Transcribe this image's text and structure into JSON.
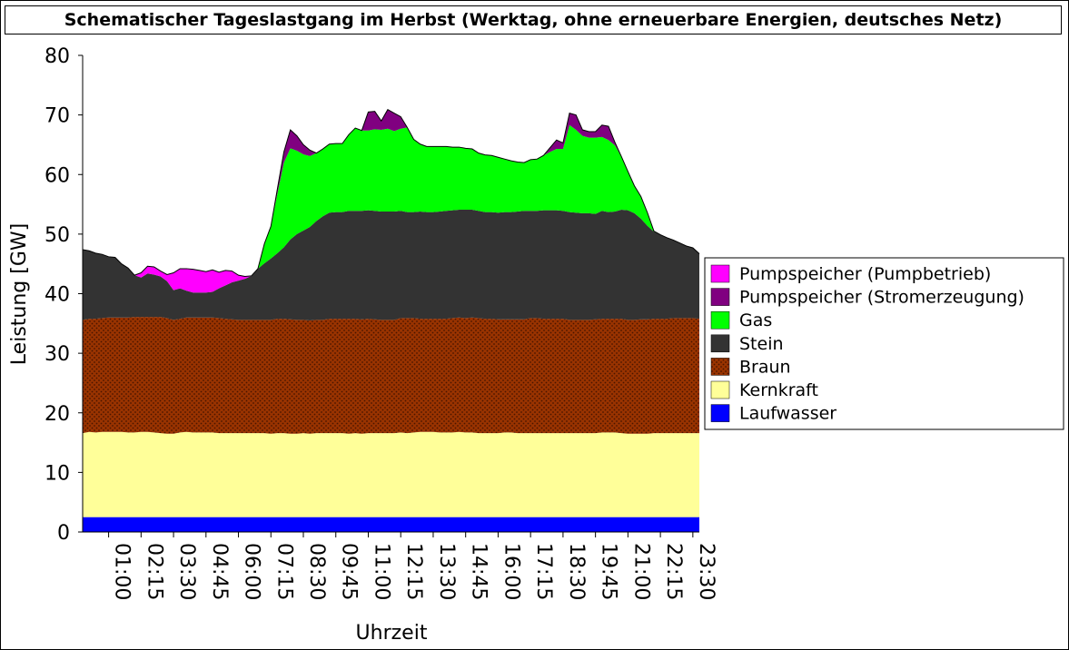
{
  "chart_data": {
    "type": "area",
    "stacked": true,
    "title": "Schematischer Tageslastgang im Herbst (Werktag, ohne erneuerbare Energien, deutsches Netz)",
    "xlabel": "Uhrzeit",
    "ylabel": "Leistung [GW]",
    "ylim": [
      0,
      80
    ],
    "yticks": [
      0,
      10,
      20,
      30,
      40,
      50,
      60,
      70,
      80
    ],
    "x_hours": [
      0,
      0.25,
      0.5,
      0.75,
      1,
      1.25,
      1.5,
      1.75,
      2,
      2.25,
      2.5,
      2.75,
      3,
      3.25,
      3.5,
      3.75,
      4,
      4.25,
      4.5,
      4.75,
      5,
      5.25,
      5.5,
      5.75,
      6,
      6.25,
      6.5,
      6.75,
      7,
      7.25,
      7.5,
      7.75,
      8,
      8.25,
      8.5,
      8.75,
      9,
      9.25,
      9.5,
      9.75,
      10,
      10.25,
      10.5,
      10.75,
      11,
      11.25,
      11.5,
      11.75,
      12,
      12.25,
      12.5,
      12.75,
      13,
      13.25,
      13.5,
      13.75,
      14,
      14.25,
      14.5,
      14.75,
      15,
      15.25,
      15.5,
      15.75,
      16,
      16.25,
      16.5,
      16.75,
      17,
      17.25,
      17.5,
      17.75,
      18,
      18.25,
      18.5,
      18.75,
      19,
      19.25,
      19.5,
      19.75,
      20,
      20.25,
      20.5,
      20.75,
      21,
      21.25,
      21.5,
      21.75,
      22,
      22.25,
      22.5,
      22.75,
      23,
      23.25,
      23.5,
      23.75
    ],
    "xtick_labels": [
      "01:00",
      "02:15",
      "03:30",
      "04:45",
      "06:00",
      "07:15",
      "08:30",
      "09:45",
      "11:00",
      "12:15",
      "13:30",
      "14:45",
      "16:00",
      "17:15",
      "18:30",
      "19:45",
      "21:00",
      "22:15",
      "23:30"
    ],
    "xtick_hours": [
      1,
      2.25,
      3.5,
      4.75,
      6,
      7.25,
      8.5,
      9.75,
      11,
      12.25,
      13.5,
      14.75,
      16,
      17.25,
      18.5,
      19.75,
      21,
      22.25,
      23.5
    ],
    "legend_position": "right",
    "series": [
      {
        "name": "Laufwasser",
        "color": "#0000ff",
        "values": [
          2.5,
          2.5,
          2.5,
          2.5,
          2.5,
          2.5,
          2.5,
          2.5,
          2.5,
          2.5,
          2.5,
          2.5,
          2.5,
          2.5,
          2.5,
          2.5,
          2.5,
          2.5,
          2.5,
          2.5,
          2.5,
          2.5,
          2.5,
          2.5,
          2.5,
          2.5,
          2.5,
          2.5,
          2.5,
          2.5,
          2.5,
          2.5,
          2.5,
          2.5,
          2.5,
          2.5,
          2.5,
          2.5,
          2.5,
          2.5,
          2.5,
          2.5,
          2.5,
          2.5,
          2.5,
          2.5,
          2.5,
          2.5,
          2.5,
          2.5,
          2.5,
          2.5,
          2.5,
          2.5,
          2.5,
          2.5,
          2.5,
          2.5,
          2.5,
          2.5,
          2.5,
          2.5,
          2.5,
          2.5,
          2.5,
          2.5,
          2.5,
          2.5,
          2.5,
          2.5,
          2.5,
          2.5,
          2.5,
          2.5,
          2.5,
          2.5,
          2.5,
          2.5,
          2.5,
          2.5,
          2.5,
          2.5,
          2.5,
          2.5,
          2.5,
          2.5,
          2.5,
          2.5,
          2.5,
          2.5,
          2.5,
          2.5,
          2.5,
          2.5,
          2.5,
          2.5
        ]
      },
      {
        "name": "Kernkraft",
        "color": "#ffff99",
        "values": [
          14.1,
          14.3,
          14.2,
          14.3,
          14.3,
          14.3,
          14.3,
          14.2,
          14.2,
          14.3,
          14.3,
          14.2,
          14.1,
          14.0,
          14.0,
          14.2,
          14.3,
          14.2,
          14.2,
          14.2,
          14.2,
          14.1,
          14.1,
          14.1,
          14.1,
          14.1,
          14.1,
          14.1,
          14.1,
          14.0,
          14.1,
          14.1,
          14.0,
          14.0,
          14.1,
          14.0,
          14.1,
          14.1,
          14.1,
          14.1,
          14.1,
          14.0,
          14.1,
          14.0,
          14.1,
          14.1,
          14.1,
          14.1,
          14.1,
          14.2,
          14.1,
          14.2,
          14.3,
          14.3,
          14.3,
          14.2,
          14.2,
          14.2,
          14.3,
          14.2,
          14.2,
          14.1,
          14.1,
          14.1,
          14.1,
          14.2,
          14.2,
          14.1,
          14.1,
          14.1,
          14.1,
          14.1,
          14.1,
          14.1,
          14.1,
          14.1,
          14.1,
          14.1,
          14.1,
          14.1,
          14.2,
          14.2,
          14.2,
          14.1,
          14.0,
          14.0,
          14.0,
          14.0,
          14.1,
          14.1,
          14.1,
          14.1,
          14.1,
          14.1,
          14.1,
          14.1
        ]
      },
      {
        "name": "Braun",
        "color": "#993300",
        "values": [
          19.0,
          19.0,
          19.1,
          19.1,
          19.2,
          19.2,
          19.2,
          19.3,
          19.4,
          19.3,
          19.3,
          19.4,
          19.5,
          19.4,
          19.1,
          19.1,
          19.2,
          19.3,
          19.3,
          19.3,
          19.3,
          19.3,
          19.2,
          19.1,
          19.0,
          19.0,
          19.0,
          19.0,
          19.0,
          19.1,
          19.2,
          19.2,
          19.2,
          19.1,
          19.0,
          19.0,
          19.0,
          19.0,
          19.2,
          19.2,
          19.2,
          19.3,
          19.2,
          19.2,
          19.2,
          19.1,
          19.0,
          19.0,
          19.0,
          19.2,
          19.3,
          19.2,
          19.0,
          19.0,
          19.0,
          19.1,
          19.1,
          19.2,
          19.2,
          19.2,
          19.3,
          19.3,
          19.2,
          19.2,
          19.1,
          19.0,
          19.0,
          19.1,
          19.1,
          19.3,
          19.3,
          19.2,
          19.2,
          19.2,
          19.2,
          19.0,
          19.0,
          19.0,
          19.0,
          19.1,
          19.1,
          19.1,
          19.1,
          19.2,
          19.1,
          19.1,
          19.2,
          19.2,
          19.2,
          19.2,
          19.2,
          19.3,
          19.3,
          19.3,
          19.3,
          19.2
        ]
      },
      {
        "name": "Stein",
        "color": "#333333",
        "values": [
          11.8,
          11.4,
          11.0,
          10.7,
          10.2,
          10.1,
          9.0,
          8.3,
          7.0,
          6.6,
          7.3,
          7.1,
          6.8,
          6.2,
          5.0,
          5.1,
          4.5,
          4.2,
          4.2,
          4.2,
          4.3,
          5.0,
          5.6,
          6.2,
          6.6,
          6.9,
          7.4,
          8.6,
          9.5,
          10.3,
          11.0,
          12.0,
          13.4,
          14.4,
          15.0,
          15.7,
          16.6,
          17.4,
          17.8,
          17.9,
          17.9,
          18.1,
          18.1,
          18.2,
          18.2,
          18.2,
          18.2,
          18.2,
          18.2,
          18.0,
          17.8,
          17.8,
          18.0,
          17.9,
          17.9,
          18.0,
          18.1,
          18.1,
          18.1,
          18.2,
          18.1,
          18.0,
          17.9,
          17.9,
          17.9,
          18.0,
          18.0,
          18.1,
          18.2,
          18.0,
          18.0,
          18.2,
          18.2,
          18.2,
          18.1,
          18.1,
          18.0,
          17.9,
          17.9,
          17.7,
          18.1,
          17.9,
          18.0,
          18.3,
          18.4,
          17.9,
          16.9,
          15.7,
          14.6,
          14.1,
          13.6,
          13.1,
          12.6,
          12.1,
          11.8,
          10.9
        ]
      },
      {
        "name": "Gas",
        "color": "#00ff00",
        "values": [
          0,
          0,
          0,
          0,
          0,
          0,
          0,
          0,
          0,
          0,
          0,
          0,
          0,
          0,
          0,
          0,
          0,
          0,
          0,
          0,
          0,
          0,
          0,
          0,
          0,
          0,
          0,
          0,
          3.3,
          5.4,
          10.0,
          14.2,
          15.3,
          14.0,
          12.8,
          11.9,
          11.4,
          11.3,
          11.5,
          11.5,
          11.5,
          12.8,
          13.9,
          13.5,
          13.4,
          13.7,
          13.7,
          13.9,
          13.5,
          13.8,
          14.2,
          12.2,
          11.3,
          11.0,
          11.0,
          10.9,
          10.8,
          10.6,
          10.5,
          10.3,
          10.2,
          9.7,
          9.6,
          9.5,
          9.3,
          8.9,
          8.6,
          8.3,
          8.1,
          8.6,
          8.7,
          9.2,
          9.8,
          10.3,
          10.4,
          14.6,
          13.9,
          13.0,
          12.7,
          12.8,
          12.4,
          12.1,
          11.1,
          8.9,
          6.5,
          4.6,
          3.7,
          2.2,
          0.1,
          0,
          0,
          0,
          0,
          0,
          0,
          0
        ]
      },
      {
        "name": "Pumpspeicher (Stromerzeugung)",
        "color": "#800080",
        "values": [
          0,
          0,
          0,
          0,
          0,
          0,
          0,
          0,
          0,
          0,
          0,
          0,
          0,
          0,
          0,
          0,
          0,
          0,
          0,
          0,
          0,
          0,
          0,
          0,
          0,
          0,
          0,
          0,
          0,
          0,
          0.8,
          1.8,
          3.1,
          2.5,
          1.6,
          1.0,
          0,
          0,
          0,
          0,
          0,
          0,
          0,
          0,
          3.1,
          3.0,
          1.5,
          3.2,
          3.0,
          2.0,
          0,
          0,
          0,
          0,
          0,
          0,
          0,
          0,
          0,
          0,
          0,
          0,
          0,
          0,
          0,
          0,
          0,
          0,
          0,
          0,
          0,
          0,
          0.7,
          1.5,
          1.0,
          2.0,
          2.5,
          1.0,
          1.0,
          1.0,
          2.0,
          2.3,
          0.5,
          0,
          0,
          0,
          0,
          0,
          0,
          0,
          0,
          0,
          0,
          0,
          0,
          0
        ]
      },
      {
        "name": "Pumpspeicher (Pumpbetrieb)",
        "color": "#ff00ff",
        "values": [
          0,
          0,
          0,
          0,
          0,
          0,
          0,
          0,
          0,
          0.8,
          1.2,
          1.3,
          0.9,
          1.1,
          2.9,
          3.3,
          3.7,
          3.9,
          3.7,
          3.5,
          3.7,
          2.7,
          2.5,
          1.9,
          0.9,
          0.4,
          0,
          0,
          0,
          0,
          0,
          0,
          0,
          0,
          0,
          0,
          0,
          0,
          0,
          0,
          0,
          0,
          0,
          0,
          0,
          0,
          0,
          0,
          0,
          0,
          0,
          0,
          0,
          0,
          0,
          0,
          0,
          0,
          0,
          0,
          0,
          0,
          0,
          0,
          0,
          0,
          0,
          0,
          0,
          0,
          0,
          0,
          0,
          0,
          0,
          0,
          0,
          0,
          0,
          0,
          0,
          0,
          0,
          0,
          0,
          0,
          0,
          0,
          0,
          0,
          0,
          0,
          0,
          0,
          0,
          0
        ]
      }
    ],
    "legend_order": [
      "Pumpspeicher (Pumpbetrieb)",
      "Pumpspeicher (Stromerzeugung)",
      "Gas",
      "Stein",
      "Braun",
      "Kernkraft",
      "Laufwasser"
    ]
  }
}
